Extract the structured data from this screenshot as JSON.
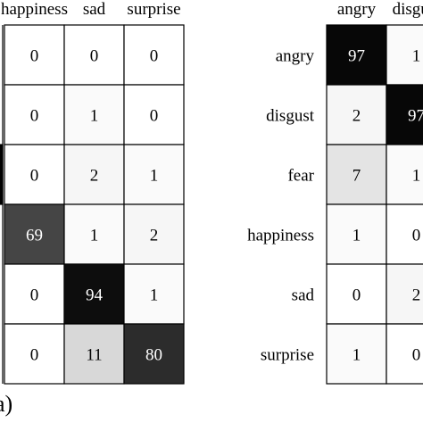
{
  "caption": "a)",
  "chart_data": [
    {
      "type": "heatmap",
      "col_labels": [
        "happiness",
        "sad",
        "surprise"
      ],
      "rows": [
        [
          0,
          0,
          0
        ],
        [
          0,
          1,
          0
        ],
        [
          0,
          2,
          1
        ],
        [
          69,
          1,
          2
        ],
        [
          0,
          94,
          1
        ],
        [
          0,
          11,
          80
        ]
      ],
      "max": 100
    },
    {
      "type": "heatmap",
      "col_labels": [
        "angry",
        "disgust"
      ],
      "row_labels": [
        "angry",
        "disgust",
        "fear",
        "happiness",
        "sad",
        "surprise"
      ],
      "rows": [
        [
          97,
          1
        ],
        [
          2,
          97
        ],
        [
          7,
          1
        ],
        [
          1,
          0
        ],
        [
          0,
          2
        ],
        [
          1,
          0
        ]
      ],
      "max": 100
    }
  ]
}
